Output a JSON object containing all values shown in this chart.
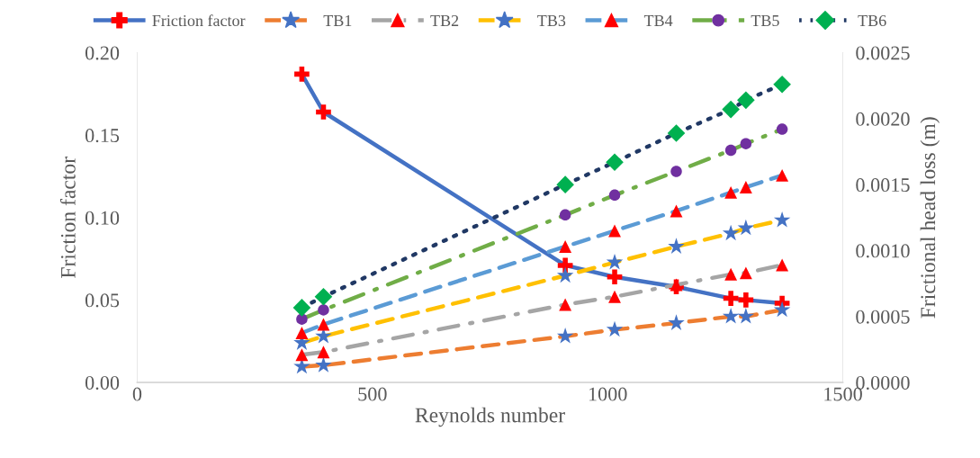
{
  "chart_data": {
    "type": "line",
    "xlabel": "Reynolds number",
    "ylabel": "Friction factor",
    "y2label": "Frictional head loss (m)",
    "xlim": [
      0,
      1500
    ],
    "xticks": [
      0,
      500,
      1000,
      1500
    ],
    "ylim": [
      0,
      0.2
    ],
    "yticks": [
      {
        "value": 0,
        "label": "0.00"
      },
      {
        "value": 0.05,
        "label": "0.05"
      },
      {
        "value": 0.1,
        "label": "0.10"
      },
      {
        "value": 0.15,
        "label": "0.15"
      },
      {
        "value": 0.2,
        "label": "0.20"
      }
    ],
    "y2lim": [
      0,
      0.0025
    ],
    "y2ticks": [
      {
        "value": 0,
        "label": "0.0000"
      },
      {
        "value": 0.0005,
        "label": "0.0005"
      },
      {
        "value": 0.001,
        "label": "0.0010"
      },
      {
        "value": 0.0015,
        "label": "0.0015"
      },
      {
        "value": 0.002,
        "label": "0.0020"
      },
      {
        "value": 0.0025,
        "label": "0.0025"
      }
    ],
    "x": [
      350,
      396,
      910,
      1015,
      1146,
      1262,
      1294,
      1371
    ],
    "grid": false,
    "legend": "top",
    "series": [
      {
        "name": "Friction factor",
        "color": "#4472c4",
        "colors": [
          "#ff0000",
          "#ff0000",
          "#ff0000",
          "#ff0000",
          "#ff0000",
          "#ff0000",
          "#ff0000",
          "#ff0000"
        ],
        "marker": "cross",
        "line_style": "solid",
        "values": [
          0.187,
          0.164,
          0.071,
          0.064,
          0.058,
          0.051,
          0.05,
          0.048
        ]
      },
      {
        "name": "TB1",
        "color": "#ed7d31",
        "colors": [
          "#4472c4",
          "#4472c4",
          "#4472c4",
          "#4472c4",
          "#4472c4",
          "#4472c4",
          "#4472c4",
          "#4472c4"
        ],
        "marker": "star",
        "line_style": "dashed",
        "axis": "y2",
        "values": [
          0.00012,
          0.00013,
          0.00035,
          0.0004,
          0.00045,
          0.0005,
          0.0005,
          0.00055
        ]
      },
      {
        "name": "TB2",
        "color": "#a5a5a5",
        "colors": [
          "#ff0000",
          "#ff0000",
          "#ff0000",
          "#ff0000",
          "#ff0000",
          "#ff0000",
          "#ff0000",
          "#ff0000"
        ],
        "marker": "triangle",
        "line_style": "dashdot",
        "axis": "y2",
        "values": [
          0.00021,
          0.00023,
          0.00059,
          0.00065,
          0.00074,
          0.00082,
          0.00083,
          0.00089
        ]
      },
      {
        "name": "TB3",
        "color": "#ffc000",
        "colors": [
          "#4472c4",
          "#4472c4",
          "#4472c4",
          "#4472c4",
          "#4472c4",
          "#4472c4",
          "#4472c4",
          "#4472c4"
        ],
        "marker": "star",
        "line_style": "dashed",
        "axis": "y2",
        "values": [
          0.0003,
          0.00035,
          0.00081,
          0.00091,
          0.00103,
          0.00113,
          0.00117,
          0.00123
        ]
      },
      {
        "name": "TB4",
        "color": "#5b9bd5",
        "colors": [
          "#ff0000",
          "#ff0000",
          "#ff0000",
          "#ff0000",
          "#ff0000",
          "#ff0000",
          "#ff0000",
          "#ff0000"
        ],
        "marker": "triangle",
        "line_style": "dashed",
        "axis": "y2",
        "values": [
          0.000375,
          0.00044,
          0.00103,
          0.00115,
          0.0013,
          0.00144,
          0.00148,
          0.00157
        ]
      },
      {
        "name": "TB5",
        "color": "#70ad47",
        "colors": [
          "#7030a0",
          "#7030a0",
          "#7030a0",
          "#7030a0",
          "#7030a0",
          "#7030a0",
          "#7030a0",
          "#7030a0"
        ],
        "marker": "circle",
        "line_style": "dashdot",
        "axis": "y2",
        "values": [
          0.00048,
          0.00055,
          0.00127,
          0.00142,
          0.0016,
          0.00176,
          0.00181,
          0.00192
        ]
      },
      {
        "name": "TB6",
        "color": "#203864",
        "colors": [
          "#00b050",
          "#00b050",
          "#00b050",
          "#00b050",
          "#00b050",
          "#00b050",
          "#00b050",
          "#00b050"
        ],
        "marker": "diamond",
        "line_style": "dotted",
        "axis": "y2",
        "values": [
          0.000567,
          0.00065,
          0.0015,
          0.00167,
          0.00189,
          0.00207,
          0.00214,
          0.00226
        ]
      }
    ]
  }
}
